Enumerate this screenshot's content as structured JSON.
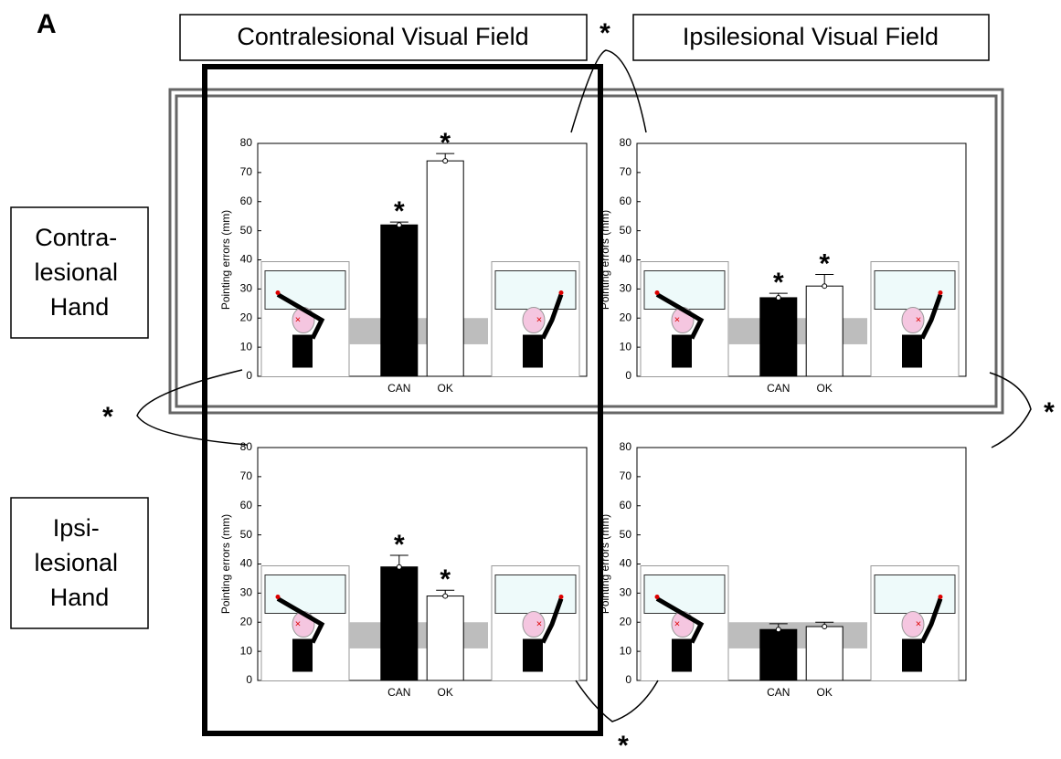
{
  "panel_label": "A",
  "column_headers": [
    "Contralesional Visual Field",
    "Ipsilesional Visual Field"
  ],
  "row_headers": [
    [
      "Contra-",
      "lesional",
      "Hand"
    ],
    [
      "Ipsi-",
      "lesional",
      "Hand"
    ]
  ],
  "comparison_marks": [
    "*",
    "*",
    "*",
    "*"
  ],
  "chart_data": [
    {
      "type": "bar",
      "ylabel": "Pointing errors (mm)",
      "categories": [
        "CAN",
        "OK"
      ],
      "values": [
        52,
        74
      ],
      "errors": [
        1,
        2.5
      ],
      "colors": [
        "#000000",
        "#ffffff"
      ],
      "annotations": [
        "*",
        "*"
      ],
      "shaded_range": [
        11,
        20
      ],
      "ylim": [
        0,
        80
      ],
      "yticks": [
        0,
        10,
        20,
        30,
        40,
        50,
        60,
        70,
        80
      ]
    },
    {
      "type": "bar",
      "ylabel": "Pointing errors (mm)",
      "categories": [
        "CAN",
        "OK"
      ],
      "values": [
        27,
        31
      ],
      "errors": [
        1.5,
        4
      ],
      "colors": [
        "#000000",
        "#ffffff"
      ],
      "annotations": [
        "*",
        "*"
      ],
      "shaded_range": [
        11,
        20
      ],
      "ylim": [
        0,
        80
      ],
      "yticks": [
        0,
        10,
        20,
        30,
        40,
        50,
        60,
        70,
        80
      ]
    },
    {
      "type": "bar",
      "ylabel": "Pointing errors (mm)",
      "categories": [
        "CAN",
        "OK"
      ],
      "values": [
        39,
        29
      ],
      "errors": [
        4,
        2
      ],
      "colors": [
        "#000000",
        "#ffffff"
      ],
      "annotations": [
        "*",
        "*"
      ],
      "shaded_range": [
        11,
        20
      ],
      "ylim": [
        0,
        80
      ],
      "yticks": [
        0,
        10,
        20,
        30,
        40,
        50,
        60,
        70,
        80
      ]
    },
    {
      "type": "bar",
      "ylabel": "Pointing errors (mm)",
      "categories": [
        "CAN",
        "OK"
      ],
      "values": [
        17.5,
        18.5
      ],
      "errors": [
        2,
        1.5
      ],
      "colors": [
        "#000000",
        "#ffffff"
      ],
      "annotations": [],
      "shaded_range": [
        11,
        20
      ],
      "ylim": [
        0,
        80
      ],
      "yticks": [
        0,
        10,
        20,
        30,
        40,
        50,
        60,
        70,
        80
      ]
    }
  ]
}
